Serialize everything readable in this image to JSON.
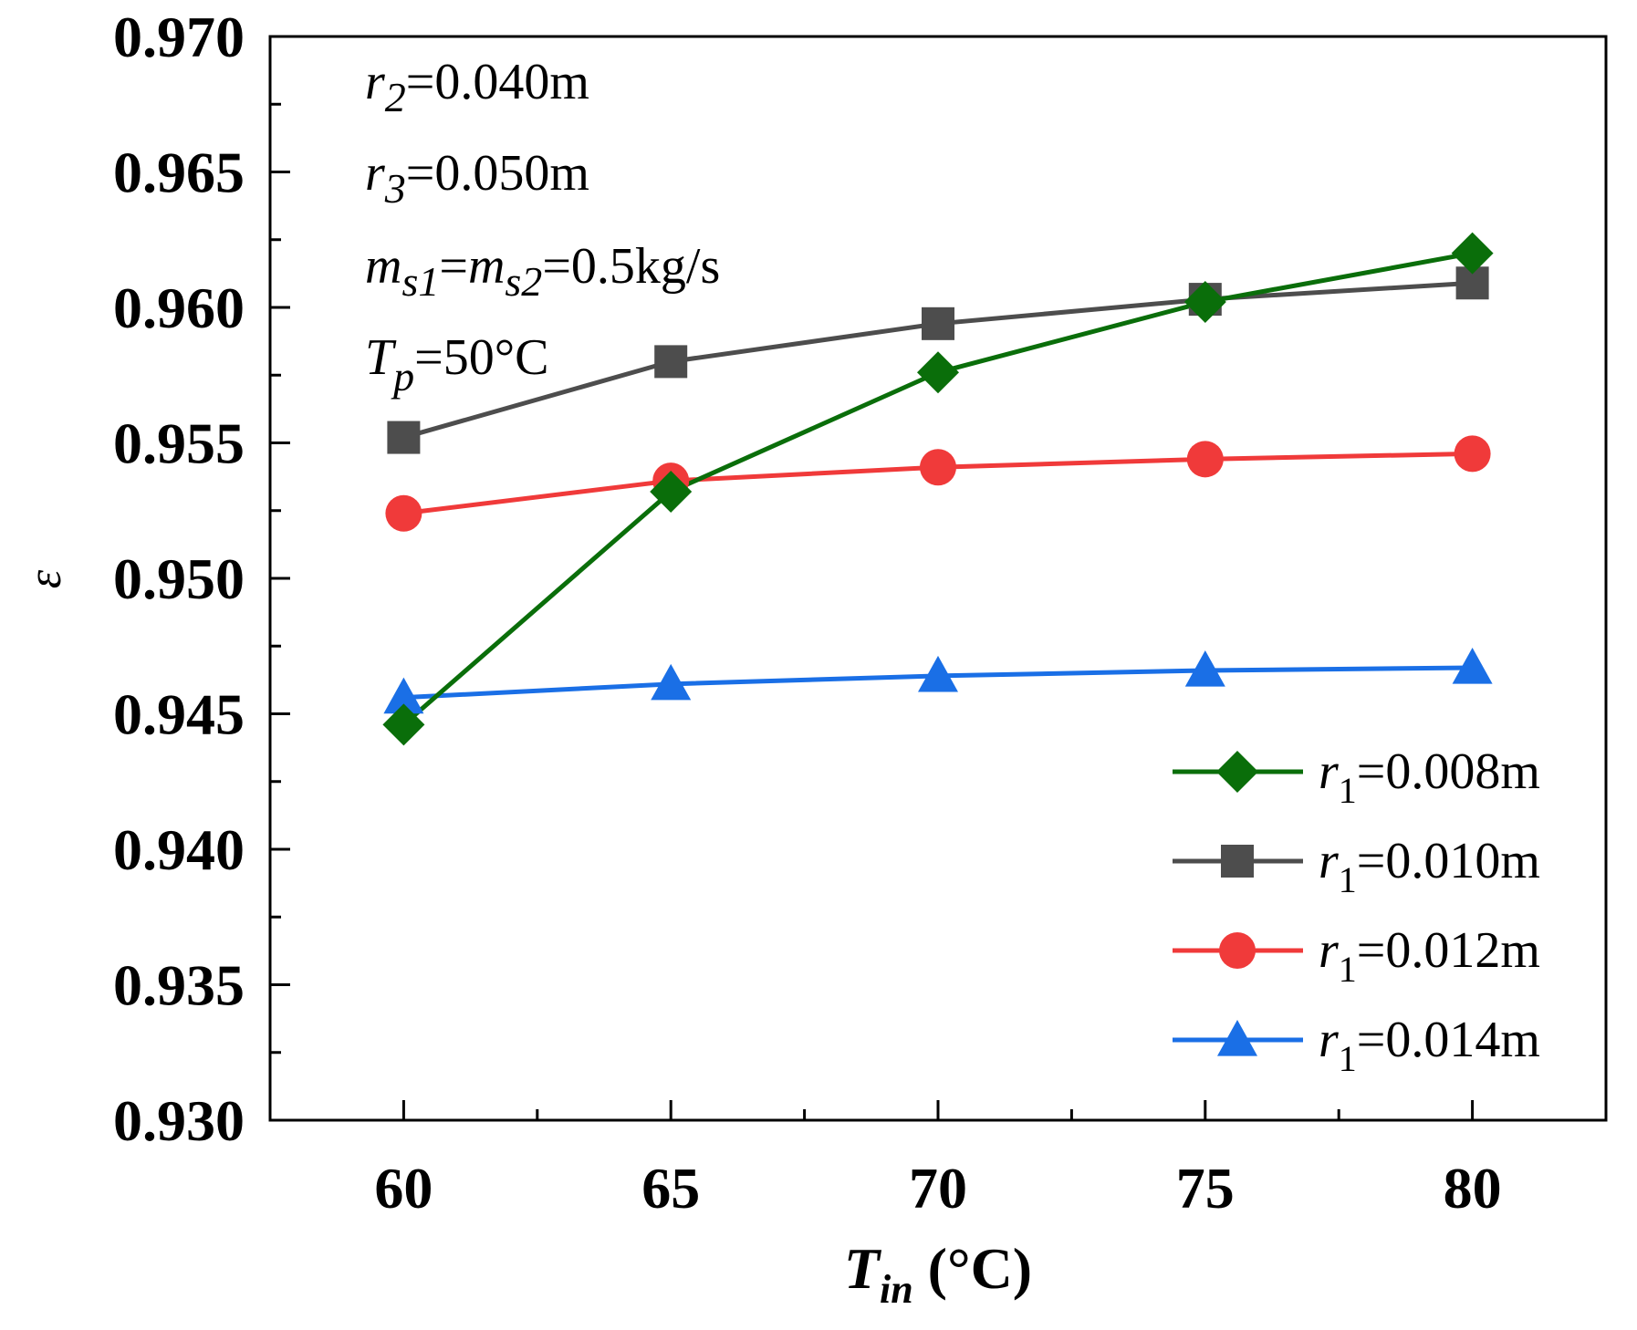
{
  "chart_data": {
    "type": "line",
    "title": "",
    "xlabel": "T_in (°C)",
    "ylabel": "ε",
    "x": [
      60,
      65,
      70,
      75,
      80
    ],
    "xticks": [
      "60",
      "65",
      "70",
      "75",
      "80"
    ],
    "xlim": [
      57.5,
      82.5
    ],
    "ylim": [
      0.93,
      0.97
    ],
    "yticks": [
      "0.930",
      "0.935",
      "0.940",
      "0.945",
      "0.950",
      "0.955",
      "0.960",
      "0.965",
      "0.970"
    ],
    "grid": false,
    "legend_position": "bottom-right",
    "series": [
      {
        "name": "r1=0.008m",
        "marker": "diamond",
        "color": "#0a6e0a",
        "values": [
          0.9446,
          0.9532,
          0.9576,
          0.9602,
          0.962
        ]
      },
      {
        "name": "r1=0.010m",
        "marker": "square",
        "color": "#4d4d4d",
        "values": [
          0.9552,
          0.958,
          0.9594,
          0.9603,
          0.9609
        ]
      },
      {
        "name": "r1=0.012m",
        "marker": "circle",
        "color": "#f03a3a",
        "values": [
          0.9524,
          0.9536,
          0.9541,
          0.9544,
          0.9546
        ]
      },
      {
        "name": "r1=0.014m",
        "marker": "triangle",
        "color": "#1a6fe6",
        "values": [
          0.9456,
          0.9461,
          0.9464,
          0.9466,
          0.9467
        ]
      }
    ],
    "annotations": {
      "r2": {
        "sym": "r",
        "sub": "2",
        "val": "=0.040m"
      },
      "r3": {
        "sym": "r",
        "sub": "3",
        "val": "=0.050m"
      },
      "ms": {
        "sym1": "m",
        "sub1": "s1",
        "eq": "=",
        "sym2": "m",
        "sub2": "s2",
        "val": "=0.5kg/s"
      },
      "tp": {
        "sym": "T",
        "sub": "p",
        "val": "=50°C"
      }
    },
    "axis_title": {
      "sym": "T",
      "sub": "in",
      "unit": " (°C)"
    },
    "legend_labels": [
      {
        "sym": "r",
        "sub": "1",
        "val": "=0.008m"
      },
      {
        "sym": "r",
        "sub": "1",
        "val": "=0.010m"
      },
      {
        "sym": "r",
        "sub": "1",
        "val": "=0.012m"
      },
      {
        "sym": "r",
        "sub": "1",
        "val": "=0.014m"
      }
    ]
  }
}
